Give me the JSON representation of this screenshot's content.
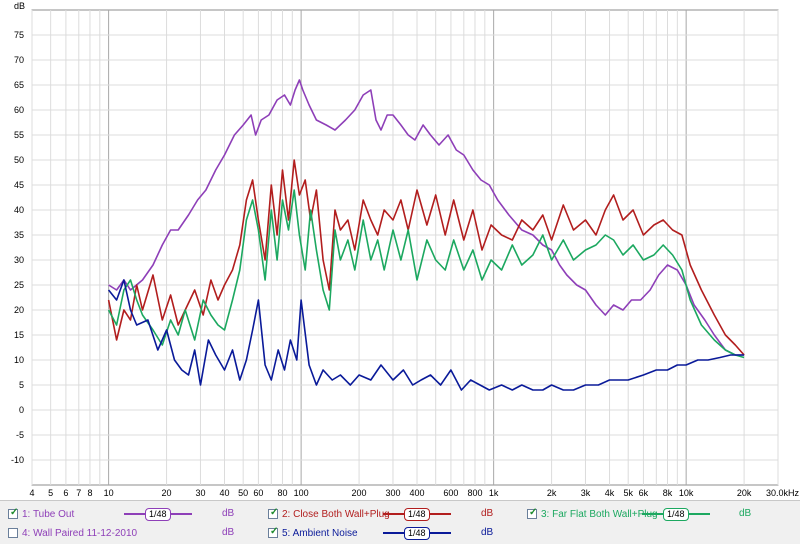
{
  "chart_data": {
    "type": "line",
    "xscale": "log",
    "xlim": [
      4,
      30000
    ],
    "ylim": [
      -15,
      80
    ],
    "yunit": "dB",
    "yticks": [
      -10,
      -5,
      0,
      5,
      10,
      15,
      20,
      25,
      30,
      35,
      40,
      45,
      50,
      55,
      60,
      65,
      70,
      75
    ],
    "xticks": [
      {
        "v": 4,
        "l": "4"
      },
      {
        "v": 5,
        "l": "5"
      },
      {
        "v": 6,
        "l": "6"
      },
      {
        "v": 7,
        "l": "7"
      },
      {
        "v": 8,
        "l": "8"
      },
      {
        "v": 10,
        "l": "10"
      },
      {
        "v": 20,
        "l": "20"
      },
      {
        "v": 30,
        "l": "30"
      },
      {
        "v": 40,
        "l": "40"
      },
      {
        "v": 50,
        "l": "50"
      },
      {
        "v": 60,
        "l": "60"
      },
      {
        "v": 80,
        "l": "80"
      },
      {
        "v": 100,
        "l": "100"
      },
      {
        "v": 200,
        "l": "200"
      },
      {
        "v": 300,
        "l": "300"
      },
      {
        "v": 400,
        "l": "400"
      },
      {
        "v": 600,
        "l": "600"
      },
      {
        "v": 800,
        "l": "800"
      },
      {
        "v": 1000,
        "l": "1k"
      },
      {
        "v": 2000,
        "l": "2k"
      },
      {
        "v": 3000,
        "l": "3k"
      },
      {
        "v": 4000,
        "l": "4k"
      },
      {
        "v": 5000,
        "l": "5k"
      },
      {
        "v": 6000,
        "l": "6k"
      },
      {
        "v": 8000,
        "l": "8k"
      },
      {
        "v": 10000,
        "l": "10k"
      },
      {
        "v": 20000,
        "l": "20k"
      },
      {
        "v": 30000,
        "l": "30.0kHz"
      }
    ],
    "grid": true,
    "series": [
      {
        "name": "1: Tube Out",
        "color": "#8e3fb8",
        "x": [
          10,
          11,
          12,
          13,
          15,
          17,
          19,
          21,
          23,
          26,
          29,
          32,
          36,
          40,
          45,
          50,
          55,
          58,
          62,
          68,
          75,
          82,
          88,
          93,
          98,
          102,
          110,
          120,
          135,
          150,
          170,
          190,
          210,
          230,
          245,
          260,
          280,
          300,
          330,
          360,
          390,
          430,
          470,
          520,
          580,
          640,
          700,
          780,
          860,
          950,
          1050,
          1200,
          1400,
          1600,
          1800,
          2000,
          2200,
          2400,
          2700,
          3000,
          3400,
          3800,
          4200,
          4700,
          5200,
          5800,
          6500,
          7200,
          8000,
          9000,
          10000,
          11000,
          12500,
          14000,
          16000,
          18000,
          20000
        ],
        "y": [
          25,
          24,
          26,
          24,
          26,
          29,
          33,
          36,
          36,
          39,
          42,
          44,
          48,
          51,
          55,
          57,
          59,
          55,
          58,
          59,
          62,
          63,
          61,
          64,
          66,
          64,
          61,
          58,
          57,
          56,
          58,
          60,
          63,
          64,
          58,
          56,
          59,
          59,
          57,
          55,
          54,
          57,
          55,
          53,
          55,
          52,
          51,
          48,
          46,
          45,
          42,
          39,
          36,
          35,
          33,
          32,
          29,
          27,
          25,
          24,
          21,
          19,
          21,
          20,
          22,
          22,
          24,
          27,
          29,
          28,
          25,
          21,
          18,
          15,
          12,
          11,
          11
        ]
      },
      {
        "name": "2: Close Both Wall+Plug",
        "color": "#b21e1e",
        "x": [
          10,
          11,
          12,
          13,
          14,
          15,
          17,
          19,
          21,
          23,
          25,
          28,
          31,
          34,
          37,
          40,
          44,
          48,
          52,
          56,
          60,
          65,
          70,
          75,
          80,
          86,
          92,
          98,
          105,
          112,
          120,
          130,
          140,
          150,
          160,
          175,
          190,
          210,
          230,
          250,
          270,
          300,
          330,
          360,
          400,
          450,
          500,
          560,
          620,
          700,
          780,
          870,
          970,
          1100,
          1250,
          1400,
          1600,
          1800,
          2000,
          2300,
          2600,
          3000,
          3400,
          3800,
          4200,
          4700,
          5300,
          6000,
          6800,
          7600,
          8500,
          9500,
          10500,
          12000,
          14000,
          16000,
          18000,
          20000
        ],
        "y": [
          22,
          14,
          20,
          18,
          25,
          20,
          27,
          18,
          23,
          17,
          20,
          24,
          19,
          26,
          22,
          25,
          28,
          33,
          42,
          46,
          38,
          30,
          45,
          35,
          48,
          38,
          50,
          43,
          46,
          38,
          44,
          30,
          24,
          40,
          36,
          38,
          32,
          42,
          38,
          35,
          40,
          38,
          42,
          36,
          44,
          37,
          43,
          35,
          42,
          34,
          40,
          32,
          37,
          35,
          34,
          38,
          36,
          39,
          34,
          41,
          36,
          38,
          35,
          40,
          43,
          38,
          40,
          35,
          37,
          38,
          36,
          35,
          29,
          24,
          19,
          15,
          13,
          11
        ]
      },
      {
        "name": "3: Far Flat  Both Wall+Plug",
        "color": "#1ca860",
        "x": [
          10,
          11,
          12,
          13,
          14,
          15,
          17,
          19,
          21,
          23,
          25,
          28,
          31,
          34,
          37,
          40,
          44,
          48,
          52,
          56,
          60,
          65,
          70,
          75,
          80,
          86,
          92,
          98,
          105,
          112,
          120,
          130,
          140,
          150,
          160,
          175,
          190,
          210,
          230,
          250,
          270,
          300,
          330,
          360,
          400,
          450,
          500,
          560,
          620,
          700,
          780,
          870,
          970,
          1100,
          1250,
          1400,
          1600,
          1800,
          2000,
          2300,
          2600,
          3000,
          3400,
          3800,
          4200,
          4700,
          5300,
          6000,
          6800,
          7600,
          8500,
          9500,
          10500,
          12000,
          14000,
          16000,
          18000,
          20000
        ],
        "y": [
          20,
          17,
          24,
          26,
          22,
          19,
          16,
          13,
          18,
          15,
          20,
          14,
          22,
          19,
          17,
          16,
          22,
          28,
          38,
          42,
          36,
          26,
          40,
          30,
          42,
          36,
          44,
          35,
          28,
          40,
          32,
          24,
          20,
          36,
          30,
          34,
          28,
          38,
          30,
          34,
          28,
          36,
          30,
          36,
          26,
          34,
          30,
          28,
          34,
          28,
          32,
          26,
          30,
          28,
          33,
          29,
          31,
          35,
          30,
          34,
          30,
          32,
          33,
          35,
          34,
          31,
          33,
          30,
          31,
          33,
          31,
          28,
          22,
          17,
          14,
          12,
          11,
          10.5
        ]
      },
      {
        "name": "5: Ambient Noise",
        "color": "#0a1a99",
        "x": [
          10,
          11,
          12,
          13,
          14,
          16,
          18,
          20,
          22,
          24,
          26,
          28,
          30,
          33,
          36,
          40,
          44,
          48,
          52,
          56,
          60,
          65,
          70,
          76,
          82,
          88,
          95,
          100,
          110,
          120,
          130,
          145,
          160,
          180,
          200,
          230,
          260,
          300,
          340,
          380,
          420,
          470,
          530,
          600,
          680,
          760,
          850,
          950,
          1100,
          1250,
          1400,
          1600,
          1800,
          2000,
          2300,
          2600,
          3000,
          3500,
          4000,
          4500,
          5000,
          6000,
          7000,
          8000,
          9000,
          10000,
          11500,
          13000,
          15000,
          17000,
          20000
        ],
        "y": [
          24,
          22,
          26,
          20,
          17,
          18,
          12,
          16,
          10,
          8,
          7,
          12,
          5,
          14,
          11,
          8,
          12,
          6,
          10,
          16,
          22,
          9,
          6,
          12,
          8,
          14,
          10,
          22,
          9,
          5,
          8,
          6,
          7,
          5,
          7,
          6,
          9,
          6,
          8,
          5,
          6,
          7,
          5,
          8,
          4,
          6,
          5,
          4,
          5,
          4,
          5,
          4,
          4,
          5,
          4,
          4,
          5,
          5,
          6,
          6,
          6,
          7,
          8,
          8,
          9,
          9,
          10,
          10,
          10.5,
          11,
          11
        ]
      }
    ]
  },
  "legend": {
    "items": [
      {
        "label": "1: Tube Out",
        "checked": true,
        "color": "#8e3fb8",
        "smoothing": "1/48",
        "unit": "dB"
      },
      {
        "label": "2: Close Both Wall+Plug",
        "checked": true,
        "color": "#b21e1e",
        "smoothing": "1/48",
        "unit": "dB"
      },
      {
        "label": "3: Far Flat  Both Wall+Plug",
        "checked": true,
        "color": "#1ca860",
        "smoothing": "1/48",
        "unit": "dB"
      },
      {
        "label": "4: Wall Paired 11-12-2010",
        "checked": false,
        "color": "#8e3fb8",
        "smoothing": "",
        "unit": "dB"
      },
      {
        "label": "5: Ambient Noise",
        "checked": true,
        "color": "#0a1a99",
        "smoothing": "1/48",
        "unit": "dB"
      }
    ]
  }
}
